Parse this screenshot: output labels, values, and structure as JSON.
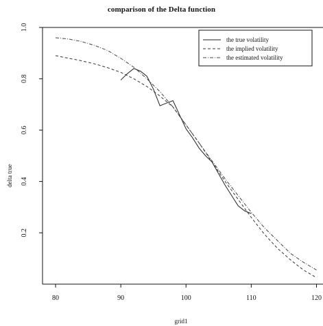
{
  "chart_data": {
    "type": "line",
    "title": "comparison of the Delta function",
    "xlabel": "grid1",
    "ylabel": "delta true",
    "xlim": [
      78,
      121
    ],
    "ylim": [
      0.0,
      1.0
    ],
    "x_ticks": [
      80,
      90,
      100,
      110,
      120
    ],
    "y_ticks": [
      0.2,
      0.4,
      0.6,
      0.8,
      1.0
    ],
    "x_tick_labels": [
      "80",
      "90",
      "100",
      "110",
      "120"
    ],
    "y_tick_labels": [
      "0.2",
      "0.4",
      "0.6",
      "0.8",
      "1.0"
    ],
    "grid": false,
    "legend_position": "top-right",
    "series": [
      {
        "name": "the true volatility",
        "dash": "solid",
        "color": "#222222",
        "x": [
          90,
          91,
          92,
          93,
          94,
          95,
          96,
          97,
          98,
          99,
          100,
          101,
          102,
          103,
          104,
          105,
          106,
          107,
          108,
          109,
          110
        ],
        "y": [
          0.795,
          0.82,
          0.84,
          0.83,
          0.81,
          0.76,
          0.695,
          0.705,
          0.715,
          0.66,
          0.605,
          0.57,
          0.53,
          0.5,
          0.475,
          0.43,
          0.385,
          0.345,
          0.305,
          0.285,
          0.275
        ]
      },
      {
        "name": "the implied volatility",
        "dash": "dashed",
        "color": "#333333",
        "x": [
          80,
          82,
          84,
          86,
          88,
          90,
          92,
          94,
          96,
          98,
          100,
          102,
          104,
          106,
          108,
          110,
          112,
          114,
          116,
          118,
          120
        ],
        "y": [
          0.89,
          0.88,
          0.87,
          0.858,
          0.843,
          0.825,
          0.8,
          0.77,
          0.733,
          0.69,
          0.62,
          0.55,
          0.475,
          0.4,
          0.33,
          0.26,
          0.195,
          0.14,
          0.095,
          0.055,
          0.025
        ]
      },
      {
        "name": "the estimated volatility",
        "dash": "dotdash",
        "color": "#444444",
        "x": [
          80,
          82,
          84,
          86,
          88,
          90,
          92,
          94,
          96,
          98,
          100,
          102,
          104,
          106,
          108,
          110,
          112,
          114,
          116,
          118,
          120
        ],
        "y": [
          0.96,
          0.955,
          0.945,
          0.93,
          0.91,
          0.88,
          0.845,
          0.8,
          0.75,
          0.69,
          0.62,
          0.55,
          0.48,
          0.41,
          0.345,
          0.28,
          0.22,
          0.17,
          0.12,
          0.085,
          0.055
        ]
      }
    ]
  }
}
